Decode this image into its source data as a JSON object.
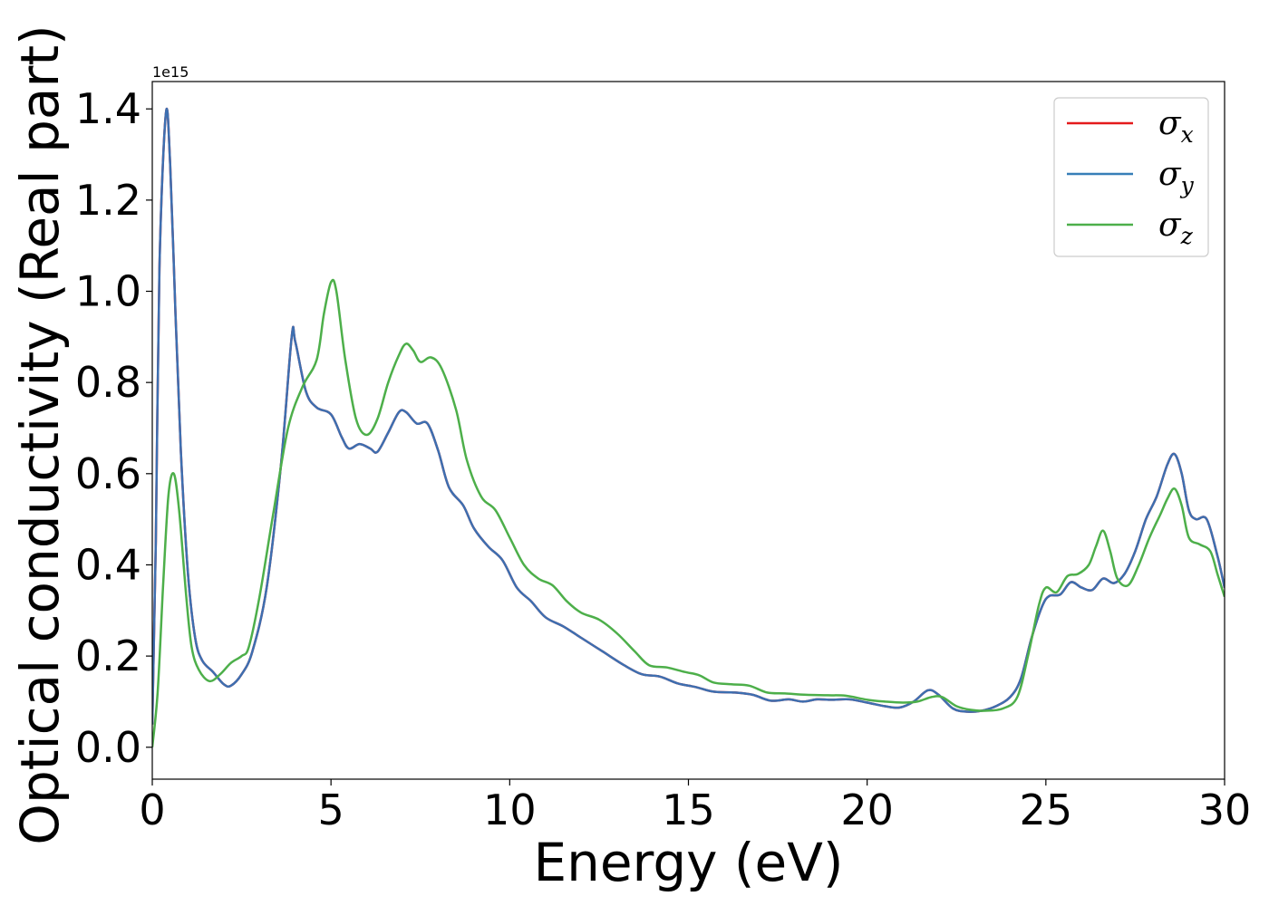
{
  "chart_data": {
    "type": "line",
    "xlabel": "Energy (eV)",
    "ylabel": "Optical conductivity (Real part)",
    "y_offset_label": "1e15",
    "xlim": [
      0,
      30
    ],
    "ylim": [
      -0.07,
      1.46
    ],
    "xticks": [
      0,
      5,
      10,
      15,
      20,
      25,
      30
    ],
    "xtick_labels": [
      "0",
      "5",
      "10",
      "15",
      "20",
      "25",
      "30"
    ],
    "yticks": [
      0.0,
      0.2,
      0.4,
      0.6,
      0.8,
      1.0,
      1.2,
      1.4
    ],
    "ytick_labels": [
      "0.0",
      "0.2",
      "0.4",
      "0.6",
      "0.8",
      "1.0",
      "1.2",
      "1.4"
    ],
    "grid": false,
    "legend_position": "top-right",
    "legend": [
      {
        "symbol": "σ",
        "sub": "x",
        "color": "#e41a1c"
      },
      {
        "symbol": "σ",
        "sub": "y",
        "color": "#377eb8"
      },
      {
        "symbol": "σ",
        "sub": "z",
        "color": "#4daf4a"
      }
    ],
    "series": [
      {
        "color": "#e41a1c",
        "points": [
          [
            0,
            0.05
          ],
          [
            0.1,
            0.45
          ],
          [
            0.2,
            1.05
          ],
          [
            0.38,
            1.39
          ],
          [
            0.5,
            1.28
          ],
          [
            0.65,
            0.95
          ],
          [
            0.8,
            0.65
          ],
          [
            1.0,
            0.38
          ],
          [
            1.2,
            0.24
          ],
          [
            1.4,
            0.19
          ],
          [
            1.7,
            0.165
          ],
          [
            2.0,
            0.138
          ],
          [
            2.2,
            0.135
          ],
          [
            2.5,
            0.16
          ],
          [
            2.8,
            0.21
          ],
          [
            3.2,
            0.35
          ],
          [
            3.6,
            0.62
          ],
          [
            3.9,
            0.9
          ],
          [
            4.0,
            0.89
          ],
          [
            4.3,
            0.78
          ],
          [
            4.6,
            0.745
          ],
          [
            5.0,
            0.73
          ],
          [
            5.3,
            0.68
          ],
          [
            5.5,
            0.655
          ],
          [
            5.8,
            0.665
          ],
          [
            6.1,
            0.655
          ],
          [
            6.3,
            0.648
          ],
          [
            6.6,
            0.69
          ],
          [
            6.9,
            0.735
          ],
          [
            7.1,
            0.735
          ],
          [
            7.4,
            0.71
          ],
          [
            7.7,
            0.71
          ],
          [
            8.0,
            0.65
          ],
          [
            8.3,
            0.57
          ],
          [
            8.7,
            0.53
          ],
          [
            9.0,
            0.48
          ],
          [
            9.4,
            0.44
          ],
          [
            9.8,
            0.41
          ],
          [
            10.2,
            0.35
          ],
          [
            10.6,
            0.32
          ],
          [
            11.0,
            0.285
          ],
          [
            11.5,
            0.265
          ],
          [
            12.0,
            0.24
          ],
          [
            12.6,
            0.21
          ],
          [
            13.2,
            0.18
          ],
          [
            13.7,
            0.16
          ],
          [
            14.2,
            0.155
          ],
          [
            14.7,
            0.14
          ],
          [
            15.2,
            0.132
          ],
          [
            15.7,
            0.122
          ],
          [
            16.3,
            0.12
          ],
          [
            16.8,
            0.115
          ],
          [
            17.3,
            0.102
          ],
          [
            17.8,
            0.105
          ],
          [
            18.2,
            0.1
          ],
          [
            18.6,
            0.105
          ],
          [
            19.0,
            0.104
          ],
          [
            19.5,
            0.105
          ],
          [
            20.0,
            0.098
          ],
          [
            20.5,
            0.09
          ],
          [
            20.9,
            0.087
          ],
          [
            21.3,
            0.1
          ],
          [
            21.7,
            0.125
          ],
          [
            22.0,
            0.115
          ],
          [
            22.4,
            0.085
          ],
          [
            22.8,
            0.078
          ],
          [
            23.2,
            0.08
          ],
          [
            23.6,
            0.09
          ],
          [
            24.0,
            0.11
          ],
          [
            24.3,
            0.15
          ],
          [
            24.6,
            0.24
          ],
          [
            24.9,
            0.31
          ],
          [
            25.1,
            0.332
          ],
          [
            25.4,
            0.335
          ],
          [
            25.7,
            0.362
          ],
          [
            26.0,
            0.35
          ],
          [
            26.3,
            0.345
          ],
          [
            26.6,
            0.37
          ],
          [
            26.9,
            0.36
          ],
          [
            27.2,
            0.38
          ],
          [
            27.5,
            0.43
          ],
          [
            27.8,
            0.5
          ],
          [
            28.1,
            0.55
          ],
          [
            28.4,
            0.62
          ],
          [
            28.6,
            0.643
          ],
          [
            28.8,
            0.6
          ],
          [
            29.0,
            0.52
          ],
          [
            29.2,
            0.5
          ],
          [
            29.5,
            0.5
          ],
          [
            29.8,
            0.42
          ],
          [
            30.0,
            0.35
          ]
        ]
      },
      {
        "color": "#3d6fb0",
        "points": [
          [
            0,
            0.05
          ],
          [
            0.1,
            0.45
          ],
          [
            0.2,
            1.05
          ],
          [
            0.38,
            1.39
          ],
          [
            0.5,
            1.28
          ],
          [
            0.65,
            0.95
          ],
          [
            0.8,
            0.65
          ],
          [
            1.0,
            0.38
          ],
          [
            1.2,
            0.24
          ],
          [
            1.4,
            0.19
          ],
          [
            1.7,
            0.165
          ],
          [
            2.0,
            0.138
          ],
          [
            2.2,
            0.135
          ],
          [
            2.5,
            0.16
          ],
          [
            2.8,
            0.21
          ],
          [
            3.2,
            0.35
          ],
          [
            3.6,
            0.62
          ],
          [
            3.9,
            0.9
          ],
          [
            4.0,
            0.89
          ],
          [
            4.3,
            0.78
          ],
          [
            4.6,
            0.745
          ],
          [
            5.0,
            0.73
          ],
          [
            5.3,
            0.68
          ],
          [
            5.5,
            0.655
          ],
          [
            5.8,
            0.665
          ],
          [
            6.1,
            0.655
          ],
          [
            6.3,
            0.648
          ],
          [
            6.6,
            0.69
          ],
          [
            6.9,
            0.735
          ],
          [
            7.1,
            0.735
          ],
          [
            7.4,
            0.71
          ],
          [
            7.7,
            0.71
          ],
          [
            8.0,
            0.65
          ],
          [
            8.3,
            0.57
          ],
          [
            8.7,
            0.53
          ],
          [
            9.0,
            0.48
          ],
          [
            9.4,
            0.44
          ],
          [
            9.8,
            0.41
          ],
          [
            10.2,
            0.35
          ],
          [
            10.6,
            0.32
          ],
          [
            11.0,
            0.285
          ],
          [
            11.5,
            0.265
          ],
          [
            12.0,
            0.24
          ],
          [
            12.6,
            0.21
          ],
          [
            13.2,
            0.18
          ],
          [
            13.7,
            0.16
          ],
          [
            14.2,
            0.155
          ],
          [
            14.7,
            0.14
          ],
          [
            15.2,
            0.132
          ],
          [
            15.7,
            0.122
          ],
          [
            16.3,
            0.12
          ],
          [
            16.8,
            0.115
          ],
          [
            17.3,
            0.102
          ],
          [
            17.8,
            0.105
          ],
          [
            18.2,
            0.1
          ],
          [
            18.6,
            0.105
          ],
          [
            19.0,
            0.104
          ],
          [
            19.5,
            0.105
          ],
          [
            20.0,
            0.098
          ],
          [
            20.5,
            0.09
          ],
          [
            20.9,
            0.087
          ],
          [
            21.3,
            0.1
          ],
          [
            21.7,
            0.125
          ],
          [
            22.0,
            0.115
          ],
          [
            22.4,
            0.085
          ],
          [
            22.8,
            0.078
          ],
          [
            23.2,
            0.08
          ],
          [
            23.6,
            0.09
          ],
          [
            24.0,
            0.11
          ],
          [
            24.3,
            0.15
          ],
          [
            24.6,
            0.24
          ],
          [
            24.9,
            0.31
          ],
          [
            25.1,
            0.332
          ],
          [
            25.4,
            0.335
          ],
          [
            25.7,
            0.362
          ],
          [
            26.0,
            0.35
          ],
          [
            26.3,
            0.345
          ],
          [
            26.6,
            0.37
          ],
          [
            26.9,
            0.36
          ],
          [
            27.2,
            0.38
          ],
          [
            27.5,
            0.43
          ],
          [
            27.8,
            0.5
          ],
          [
            28.1,
            0.55
          ],
          [
            28.4,
            0.62
          ],
          [
            28.6,
            0.643
          ],
          [
            28.8,
            0.6
          ],
          [
            29.0,
            0.52
          ],
          [
            29.2,
            0.5
          ],
          [
            29.5,
            0.5
          ],
          [
            29.8,
            0.42
          ],
          [
            30.0,
            0.35
          ]
        ]
      },
      {
        "color": "#4daf4a",
        "points": [
          [
            0,
            0.0
          ],
          [
            0.15,
            0.12
          ],
          [
            0.3,
            0.35
          ],
          [
            0.45,
            0.55
          ],
          [
            0.6,
            0.6
          ],
          [
            0.75,
            0.52
          ],
          [
            0.95,
            0.33
          ],
          [
            1.1,
            0.22
          ],
          [
            1.3,
            0.17
          ],
          [
            1.6,
            0.145
          ],
          [
            1.9,
            0.16
          ],
          [
            2.2,
            0.185
          ],
          [
            2.5,
            0.2
          ],
          [
            2.7,
            0.22
          ],
          [
            3.0,
            0.33
          ],
          [
            3.4,
            0.52
          ],
          [
            3.8,
            0.7
          ],
          [
            4.2,
            0.79
          ],
          [
            4.6,
            0.85
          ],
          [
            4.8,
            0.95
          ],
          [
            5.0,
            1.02
          ],
          [
            5.15,
            1.0
          ],
          [
            5.4,
            0.85
          ],
          [
            5.7,
            0.72
          ],
          [
            6.0,
            0.685
          ],
          [
            6.3,
            0.72
          ],
          [
            6.6,
            0.8
          ],
          [
            6.9,
            0.86
          ],
          [
            7.1,
            0.885
          ],
          [
            7.3,
            0.87
          ],
          [
            7.5,
            0.845
          ],
          [
            7.8,
            0.855
          ],
          [
            8.1,
            0.83
          ],
          [
            8.5,
            0.74
          ],
          [
            8.8,
            0.63
          ],
          [
            9.2,
            0.55
          ],
          [
            9.6,
            0.52
          ],
          [
            10.0,
            0.46
          ],
          [
            10.4,
            0.4
          ],
          [
            10.8,
            0.37
          ],
          [
            11.2,
            0.355
          ],
          [
            11.6,
            0.32
          ],
          [
            12.0,
            0.295
          ],
          [
            12.5,
            0.28
          ],
          [
            13.0,
            0.25
          ],
          [
            13.5,
            0.21
          ],
          [
            13.9,
            0.18
          ],
          [
            14.4,
            0.175
          ],
          [
            14.9,
            0.165
          ],
          [
            15.3,
            0.158
          ],
          [
            15.7,
            0.142
          ],
          [
            16.2,
            0.138
          ],
          [
            16.7,
            0.135
          ],
          [
            17.2,
            0.12
          ],
          [
            17.7,
            0.118
          ],
          [
            18.3,
            0.115
          ],
          [
            18.9,
            0.114
          ],
          [
            19.4,
            0.113
          ],
          [
            20.0,
            0.104
          ],
          [
            20.5,
            0.1
          ],
          [
            21.0,
            0.098
          ],
          [
            21.4,
            0.1
          ],
          [
            21.8,
            0.11
          ],
          [
            22.1,
            0.11
          ],
          [
            22.5,
            0.09
          ],
          [
            22.9,
            0.082
          ],
          [
            23.3,
            0.08
          ],
          [
            23.8,
            0.085
          ],
          [
            24.2,
            0.11
          ],
          [
            24.5,
            0.2
          ],
          [
            24.8,
            0.31
          ],
          [
            25.0,
            0.35
          ],
          [
            25.3,
            0.34
          ],
          [
            25.6,
            0.375
          ],
          [
            25.9,
            0.38
          ],
          [
            26.2,
            0.4
          ],
          [
            26.4,
            0.44
          ],
          [
            26.6,
            0.475
          ],
          [
            26.8,
            0.43
          ],
          [
            27.0,
            0.37
          ],
          [
            27.3,
            0.355
          ],
          [
            27.6,
            0.4
          ],
          [
            27.9,
            0.46
          ],
          [
            28.2,
            0.51
          ],
          [
            28.4,
            0.545
          ],
          [
            28.6,
            0.567
          ],
          [
            28.8,
            0.53
          ],
          [
            29.0,
            0.46
          ],
          [
            29.3,
            0.445
          ],
          [
            29.6,
            0.43
          ],
          [
            29.8,
            0.38
          ],
          [
            30.0,
            0.33
          ]
        ]
      }
    ]
  }
}
